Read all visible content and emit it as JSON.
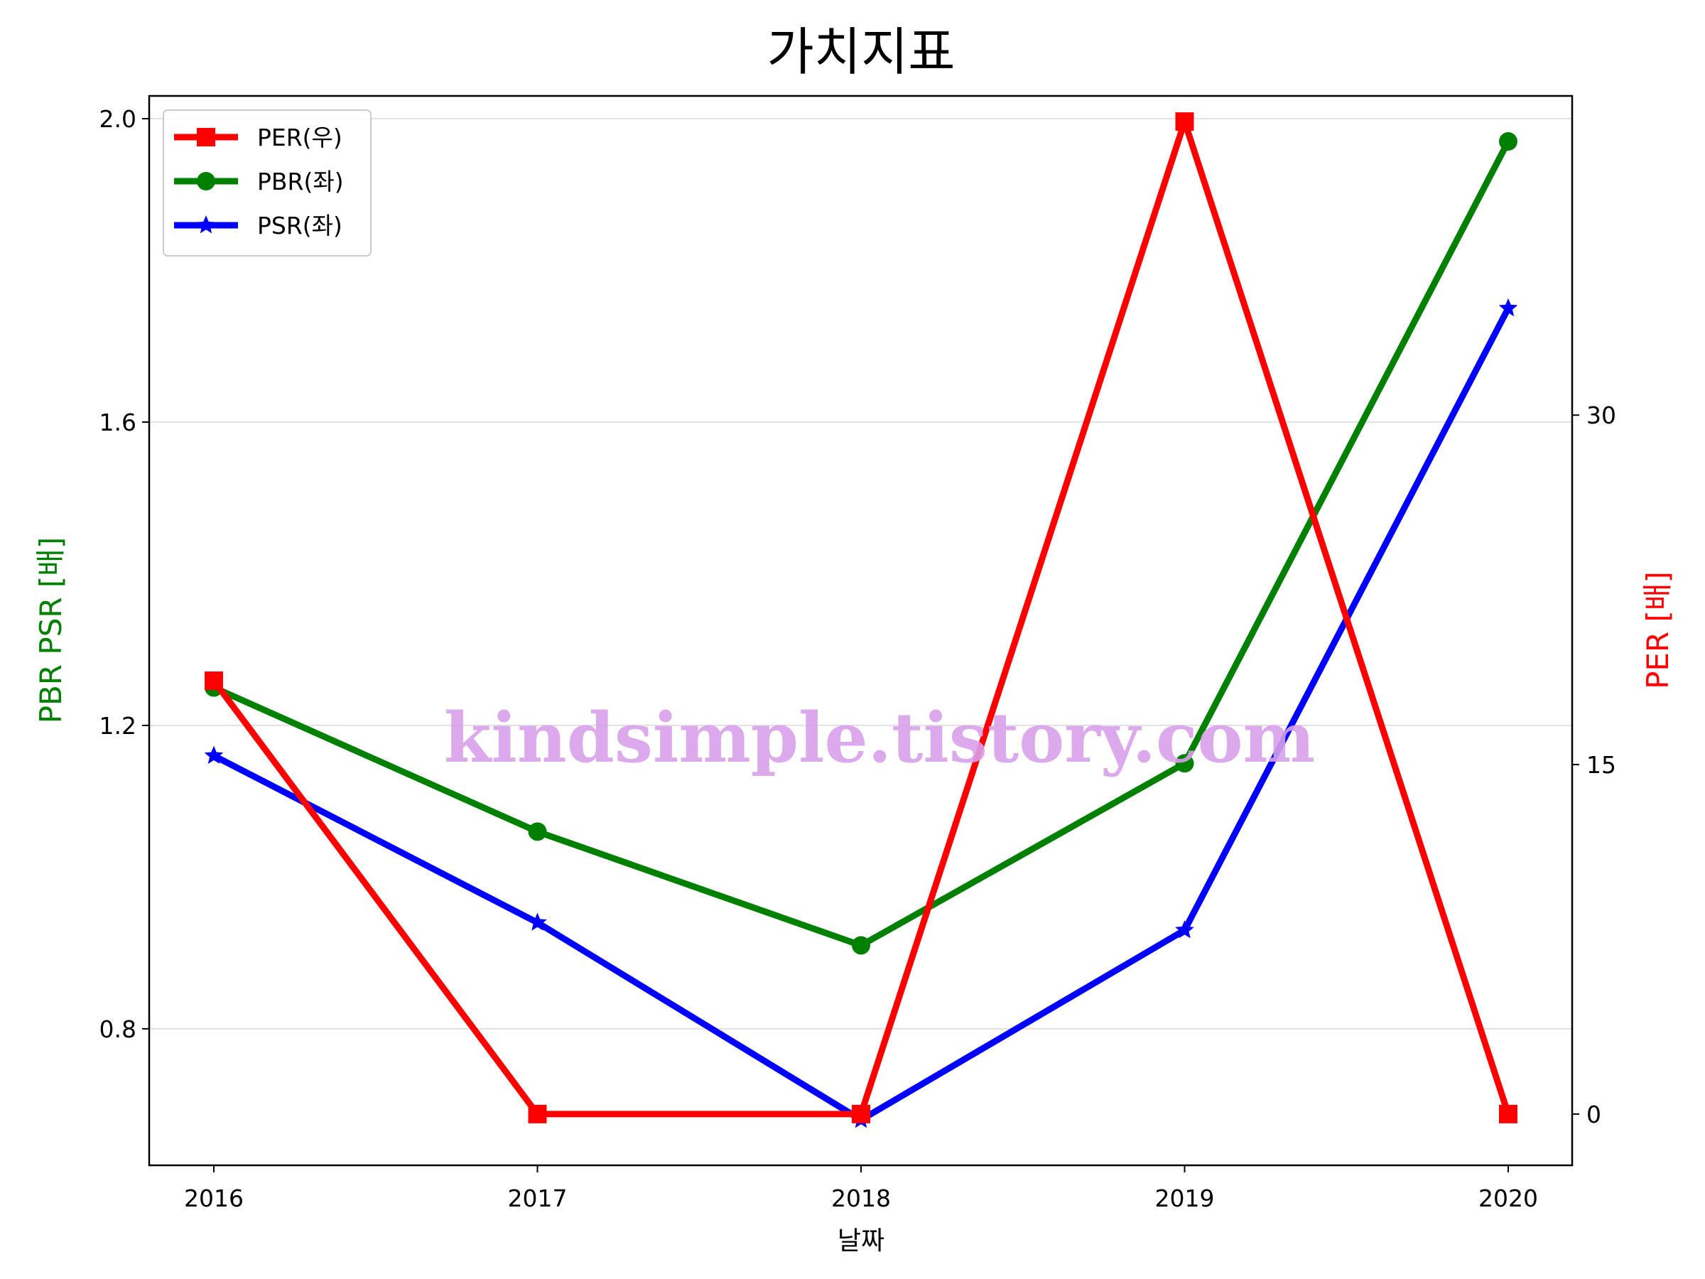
{
  "watermark": "kindsimple.tistory.com",
  "chart_data": {
    "type": "line",
    "title": "가치지표",
    "xlabel": "날짜",
    "ylabel_left": "PBR PSR [배]",
    "ylabel_right": "PER [배]",
    "categories": [
      "2016",
      "2017",
      "2018",
      "2019",
      "2020"
    ],
    "ylim_left": [
      0.62,
      2.03
    ],
    "ylim_right": [
      -2.2,
      43.7
    ],
    "yticks_left": [
      "0.8",
      "1.2",
      "1.6",
      "2.0"
    ],
    "yticks_right": [
      "0",
      "15",
      "30"
    ],
    "grid": true,
    "legend_position": "top-left",
    "series": [
      {
        "name": "PER(우)",
        "axis": "right",
        "color": "#ff0000",
        "marker": "square",
        "values": [
          18.6,
          0,
          0,
          42.6,
          0
        ]
      },
      {
        "name": "PBR(좌)",
        "axis": "left",
        "color": "#008000",
        "marker": "circle",
        "values": [
          1.25,
          1.06,
          0.91,
          1.15,
          1.97
        ]
      },
      {
        "name": "PSR(좌)",
        "axis": "left",
        "color": "#0000ff",
        "marker": "star",
        "values": [
          1.16,
          0.94,
          0.68,
          0.93,
          1.75
        ]
      }
    ]
  }
}
